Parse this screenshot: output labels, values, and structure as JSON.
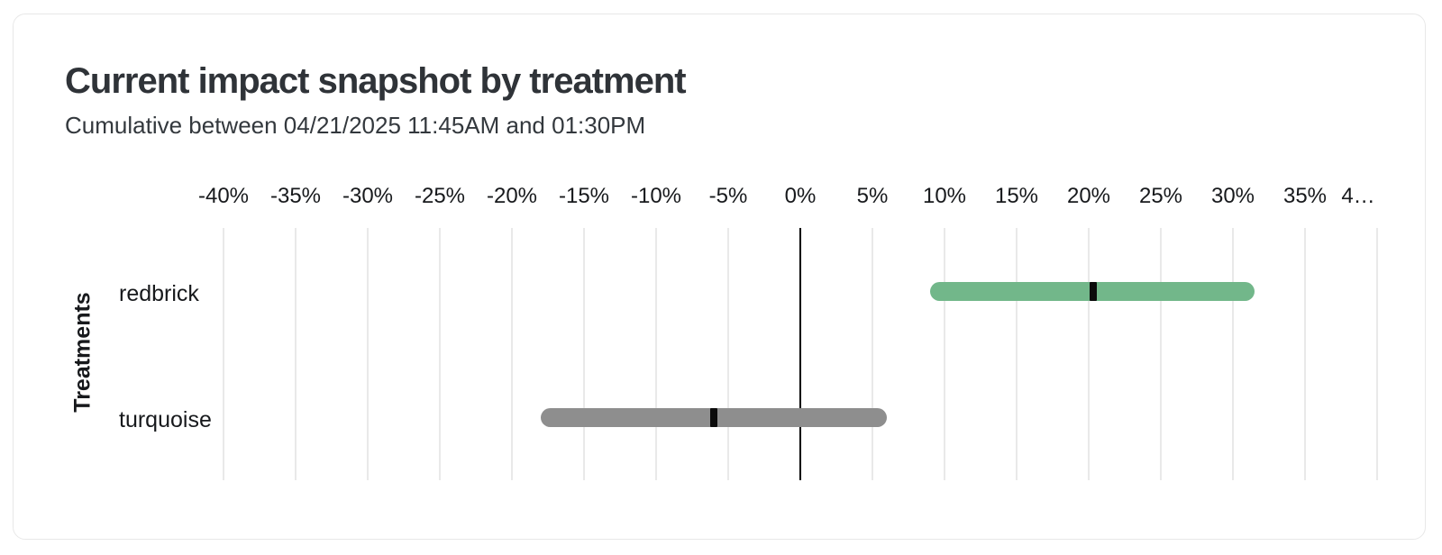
{
  "card": {
    "title": "Current impact snapshot by treatment",
    "subtitle": "Cumulative between 04/21/2025 11:45AM and 01:30PM"
  },
  "chart": {
    "y_axis_title": "Treatments",
    "x_axis": {
      "min": -40,
      "max": 40,
      "ticks": [
        {
          "value": -40,
          "label": "-40%"
        },
        {
          "value": -35,
          "label": "-35%"
        },
        {
          "value": -30,
          "label": "-30%"
        },
        {
          "value": -25,
          "label": "-25%"
        },
        {
          "value": -20,
          "label": "-20%"
        },
        {
          "value": -15,
          "label": "-15%"
        },
        {
          "value": -10,
          "label": "-10%"
        },
        {
          "value": -5,
          "label": "-5%"
        },
        {
          "value": 0,
          "label": "0%"
        },
        {
          "value": 5,
          "label": "5%"
        },
        {
          "value": 10,
          "label": "10%"
        },
        {
          "value": 15,
          "label": "15%"
        },
        {
          "value": 20,
          "label": "20%"
        },
        {
          "value": 25,
          "label": "25%"
        },
        {
          "value": 30,
          "label": "30%"
        },
        {
          "value": 35,
          "label": "35%"
        },
        {
          "value": 40,
          "label": "4…"
        }
      ]
    },
    "zero_line_value": 0,
    "rows": [
      {
        "label": "redbrick",
        "color": "#72b78a",
        "value": 20.3,
        "ci_low": 9.0,
        "ci_high": 31.5
      },
      {
        "label": "turquoise",
        "color": "#8e8e8e",
        "value": -6.0,
        "ci_low": -18.0,
        "ci_high": 6.0
      }
    ],
    "colors": {
      "gridline": "#e9e9e9",
      "zero_line": "#000000",
      "marker": "#0b0b0b"
    }
  },
  "chart_data": {
    "type": "bar",
    "orientation": "horizontal",
    "title": "Current impact snapshot by treatment",
    "subtitle": "Cumulative between 04/21/2025 11:45AM and 01:30PM",
    "xlabel": "",
    "ylabel": "Treatments",
    "categories": [
      "redbrick",
      "turquoise"
    ],
    "series": [
      {
        "name": "impact_point_estimate",
        "values": [
          20.3,
          -6.0
        ]
      },
      {
        "name": "ci_low",
        "values": [
          9.0,
          -18.0
        ]
      },
      {
        "name": "ci_high",
        "values": [
          31.5,
          6.0
        ]
      }
    ],
    "units": "%",
    "xlim": [
      -40,
      40
    ],
    "x_tick_step": 5,
    "grid": true,
    "legend": false,
    "bar_colors": [
      "#72b78a",
      "#8e8e8e"
    ]
  }
}
